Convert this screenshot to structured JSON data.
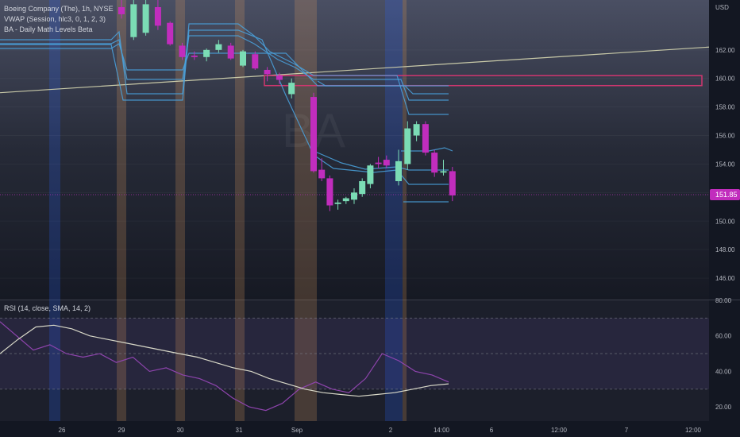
{
  "legend": {
    "symbol_line": "Boeing Company (The), 1h, NYSE",
    "vwap_line": "VWAP (Session, hlc3, 0, 1, 2, 3)",
    "levels_line": "BA - Daily Math Levels Beta"
  },
  "rsi_legend": "RSI (14, close, SMA, 14, 2)",
  "watermark": "BA",
  "currency": "USD",
  "last_price": "151.85",
  "colors": {
    "background": "#131722",
    "up": "#7bdcb5",
    "down": "#c12dbd",
    "vwap_band": "#4aa3df",
    "trendline": "#c8c9a8",
    "resistance_box": "#d0366f",
    "rsi_line": "#8e44ad",
    "rsi_sma": "#d8d8c8",
    "price_tag_bg": "#c12dbd",
    "session_blue": "#2962ff",
    "session_orange": "#e5a060"
  },
  "chart_data": [
    {
      "type": "candlestick",
      "title": "Boeing Company (The), 1h, NYSE",
      "ylabel": "USD",
      "ylim": [
        144.5,
        165.5
      ],
      "y_ticks": [
        146.0,
        148.0,
        150.0,
        152.0,
        154.0,
        156.0,
        158.0,
        160.0,
        162.0
      ],
      "x_tick_labels": [
        "26",
        "29",
        "30",
        "31",
        "Sep",
        "2",
        "14:00",
        "6",
        "12:00",
        "7",
        "12:00"
      ],
      "candles": [
        {
          "o": 165.0,
          "h": 165.6,
          "l": 164.2,
          "c": 164.5
        },
        {
          "o": 162.9,
          "h": 165.5,
          "l": 162.7,
          "c": 165.2
        },
        {
          "o": 163.2,
          "h": 165.5,
          "l": 163.0,
          "c": 165.2
        },
        {
          "o": 165.0,
          "h": 165.5,
          "l": 163.4,
          "c": 163.7
        },
        {
          "o": 163.9,
          "h": 164.0,
          "l": 162.3,
          "c": 162.4
        },
        {
          "o": 162.3,
          "h": 162.5,
          "l": 161.3,
          "c": 161.5
        },
        {
          "o": 161.6,
          "h": 161.9,
          "l": 161.3,
          "c": 161.5
        },
        {
          "o": 161.5,
          "h": 162.1,
          "l": 161.2,
          "c": 162.0
        },
        {
          "o": 162.0,
          "h": 162.7,
          "l": 161.8,
          "c": 162.4
        },
        {
          "o": 162.3,
          "h": 162.5,
          "l": 161.3,
          "c": 161.4
        },
        {
          "o": 160.9,
          "h": 162.0,
          "l": 160.8,
          "c": 161.9
        },
        {
          "o": 161.7,
          "h": 161.9,
          "l": 160.6,
          "c": 160.7
        },
        {
          "o": 160.6,
          "h": 160.8,
          "l": 159.8,
          "c": 160.3
        },
        {
          "o": 160.2,
          "h": 160.4,
          "l": 159.6,
          "c": 159.9
        },
        {
          "o": 158.9,
          "h": 160.0,
          "l": 158.6,
          "c": 159.7
        },
        {
          "o": 158.7,
          "h": 159.0,
          "l": 153.4,
          "c": 153.5
        },
        {
          "o": 153.6,
          "h": 154.4,
          "l": 152.8,
          "c": 153.0
        },
        {
          "o": 153.0,
          "h": 153.2,
          "l": 150.7,
          "c": 151.1
        },
        {
          "o": 151.2,
          "h": 151.5,
          "l": 150.8,
          "c": 151.3
        },
        {
          "o": 151.4,
          "h": 151.7,
          "l": 151.2,
          "c": 151.6
        },
        {
          "o": 151.5,
          "h": 152.3,
          "l": 151.2,
          "c": 152.0
        },
        {
          "o": 151.9,
          "h": 153.0,
          "l": 151.7,
          "c": 152.8
        },
        {
          "o": 152.6,
          "h": 154.0,
          "l": 152.3,
          "c": 153.9
        },
        {
          "o": 154.1,
          "h": 154.5,
          "l": 153.7,
          "c": 154.0
        },
        {
          "o": 154.3,
          "h": 154.6,
          "l": 153.7,
          "c": 153.9
        },
        {
          "o": 152.8,
          "h": 155.0,
          "l": 152.5,
          "c": 154.2
        },
        {
          "o": 154.0,
          "h": 157.0,
          "l": 153.6,
          "c": 156.5
        },
        {
          "o": 156.0,
          "h": 157.0,
          "l": 155.6,
          "c": 156.8
        },
        {
          "o": 156.8,
          "h": 157.0,
          "l": 154.6,
          "c": 154.8
        },
        {
          "o": 154.8,
          "h": 155.0,
          "l": 153.1,
          "c": 153.4
        },
        {
          "o": 153.4,
          "h": 154.3,
          "l": 153.2,
          "c": 153.5
        },
        {
          "o": 153.5,
          "h": 153.8,
          "l": 151.4,
          "c": 151.8
        }
      ],
      "resistance_zone": [
        159.5,
        160.2
      ],
      "last_price": 151.85
    },
    {
      "type": "line",
      "title": "RSI (14, close, SMA, 14, 2)",
      "ylim": [
        12,
        80
      ],
      "y_ticks": [
        20.0,
        40.0,
        60.0,
        80.0
      ],
      "series": [
        {
          "values": [
            68,
            60,
            52,
            55,
            50,
            48,
            50,
            45,
            48,
            40,
            42,
            38,
            36,
            32,
            25,
            20,
            18,
            22,
            30,
            34,
            30,
            28,
            36,
            50,
            46,
            40,
            38,
            34
          ]
        },
        {
          "values": [
            50,
            58,
            65,
            66,
            64,
            60,
            58,
            56,
            54,
            52,
            50,
            48,
            45,
            42,
            40,
            36,
            33,
            30,
            28,
            27,
            26,
            27,
            28,
            30,
            32,
            33
          ]
        }
      ]
    }
  ]
}
